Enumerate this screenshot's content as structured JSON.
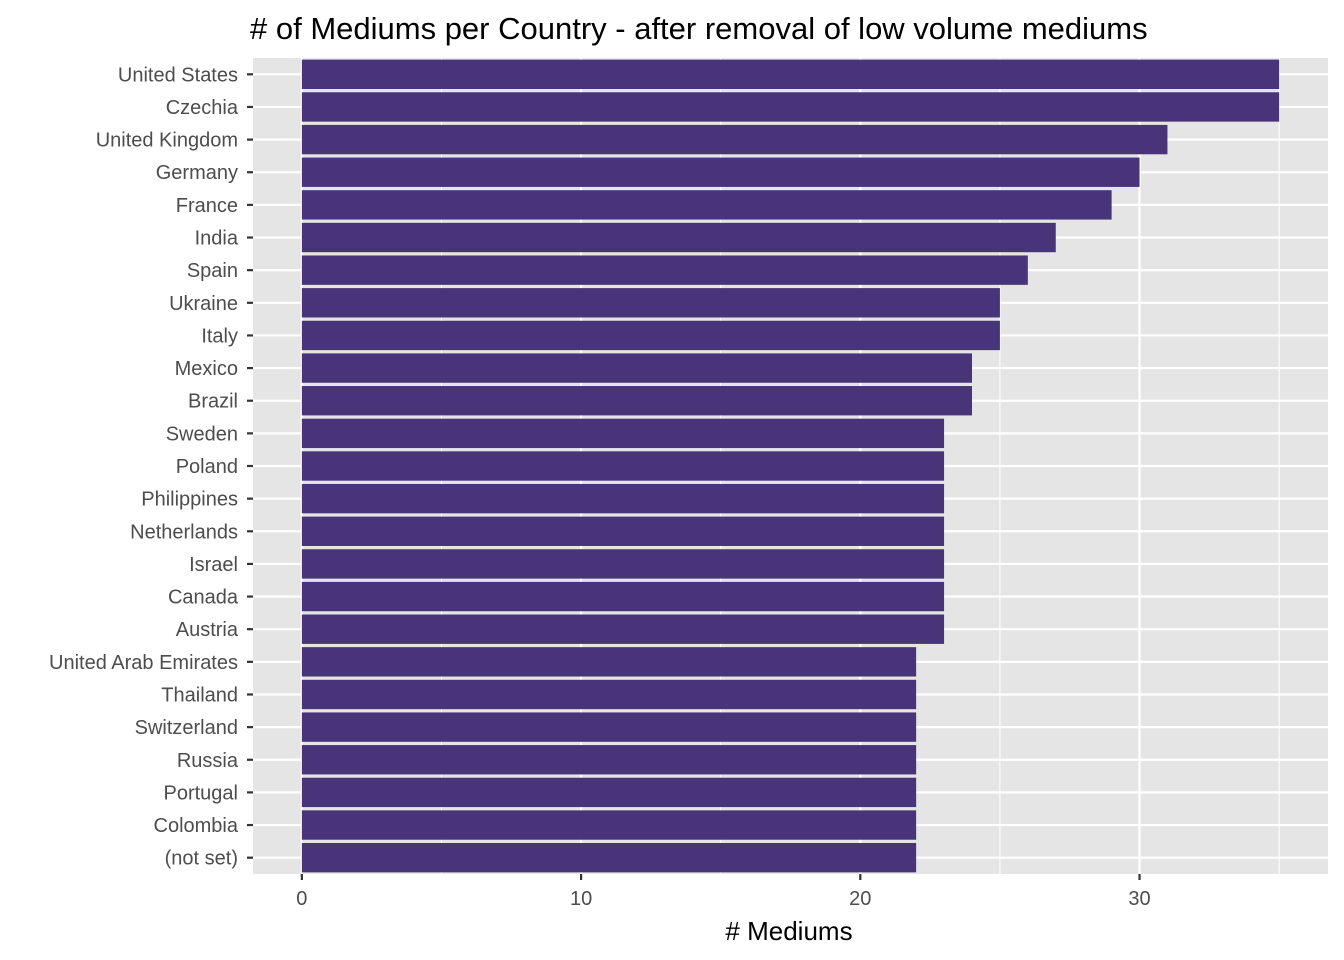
{
  "chart_data": {
    "type": "bar",
    "orientation": "horizontal",
    "title": "# of Mediums per Country - after removal of low volume mediums",
    "xlabel": "# Mediums",
    "ylabel": "",
    "categories": [
      "United States",
      "Czechia",
      "United Kingdom",
      "Germany",
      "France",
      "India",
      "Spain",
      "Ukraine",
      "Italy",
      "Mexico",
      "Brazil",
      "Sweden",
      "Poland",
      "Philippines",
      "Netherlands",
      "Israel",
      "Canada",
      "Austria",
      "United Arab Emirates",
      "Thailand",
      "Switzerland",
      "Russia",
      "Portugal",
      "Colombia",
      "(not set)"
    ],
    "values": [
      35,
      35,
      31,
      30,
      29,
      27,
      26,
      25,
      25,
      24,
      24,
      23,
      23,
      23,
      23,
      23,
      23,
      23,
      22,
      22,
      22,
      22,
      22,
      22,
      22
    ],
    "xlim": [
      -1.75,
      36.75
    ],
    "xticks": [
      0,
      10,
      20,
      30
    ],
    "xtick_labels": [
      "0",
      "10",
      "20",
      "30"
    ],
    "grid": true,
    "legend": "none",
    "colors": {
      "bar": "#483479",
      "panel": "#e5e5e5",
      "grid": "#ffffff",
      "text": "#4d4d4d",
      "title": "#000000"
    }
  }
}
